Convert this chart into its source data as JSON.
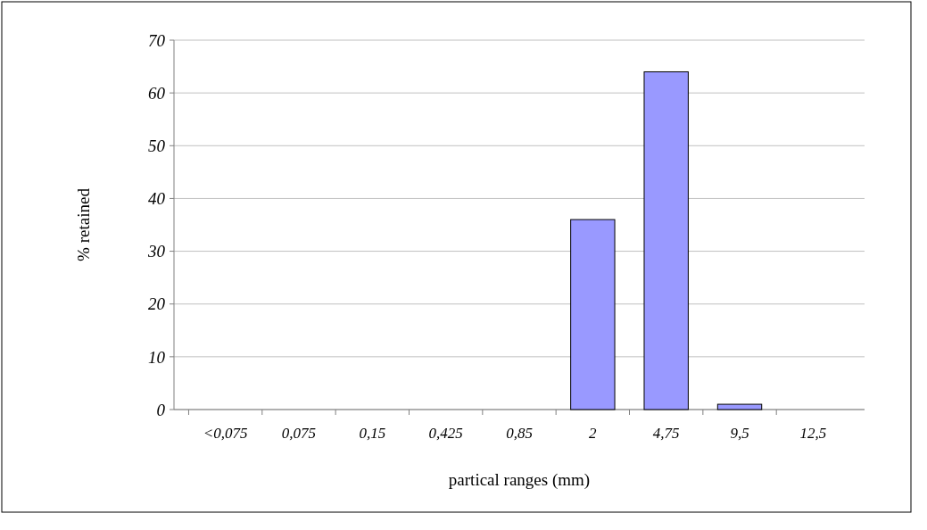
{
  "chart_data": {
    "type": "bar",
    "xlabel": "partical ranges (mm)",
    "ylabel": "% retained",
    "categories": [
      "<0,075",
      "0,075",
      "0,15",
      "0,425",
      "0,85",
      "2",
      "4,75",
      "9,5",
      "12,5"
    ],
    "values": [
      0,
      0,
      0,
      0,
      0,
      36,
      64,
      1,
      0
    ],
    "color": "#9999ff",
    "ylim": [
      0,
      70
    ],
    "yticks": [
      0,
      10,
      20,
      30,
      40,
      50,
      60,
      70
    ],
    "grid": "y"
  }
}
